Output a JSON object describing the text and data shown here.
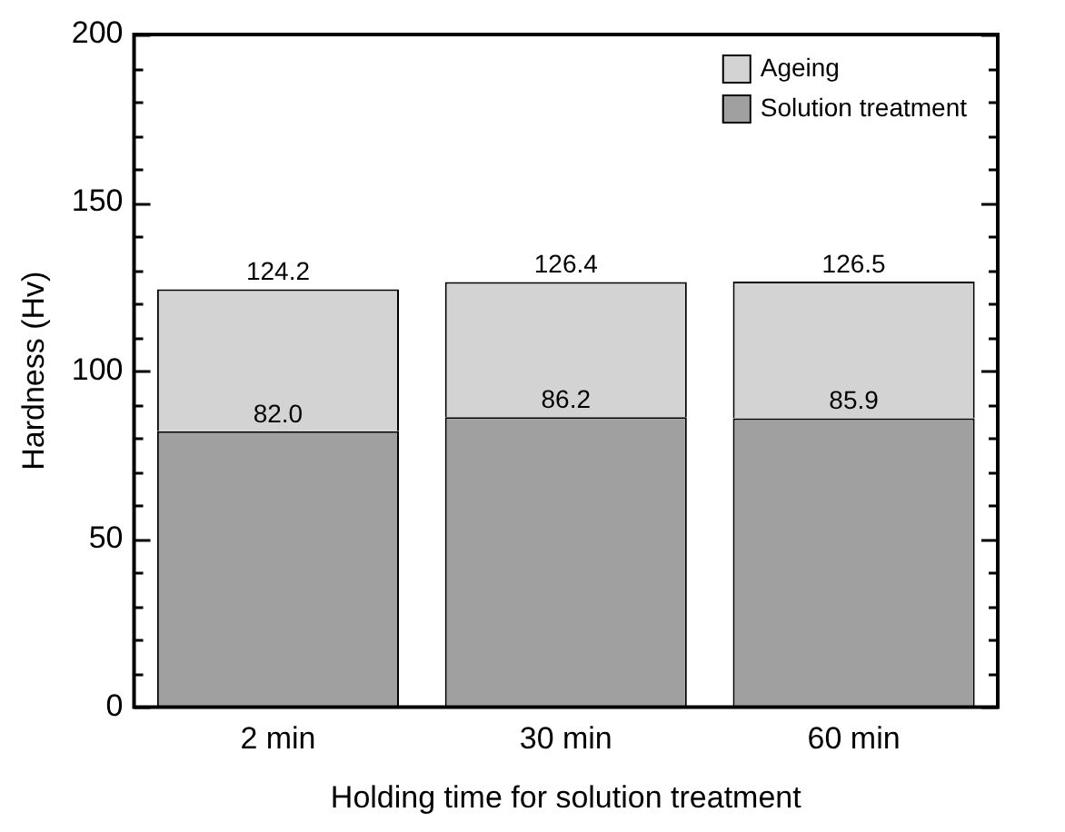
{
  "chart_data": {
    "type": "bar",
    "stacked": true,
    "xlabel": "Holding time for solution treatment",
    "ylabel": "Hardness (Hv)",
    "categories": [
      "2 min",
      "30 min",
      "60 min"
    ],
    "series": [
      {
        "name": "Solution treatment",
        "color": "#a0a0a0",
        "values": [
          82.0,
          86.2,
          85.9
        ],
        "value_labels": [
          "82.0",
          "86.2",
          "85.9"
        ]
      },
      {
        "name": "Ageing",
        "color": "#d3d3d3",
        "values": [
          42.2,
          40.2,
          40.6
        ]
      }
    ],
    "totals": [
      "124.2",
      "126.4",
      "126.5"
    ],
    "ylim": [
      0,
      200
    ],
    "yticks": [
      0,
      {
        "value": 10,
        "label": null
      },
      {
        "value": 20,
        "label": null
      },
      {
        "value": 30,
        "label": null
      },
      {
        "value": 40,
        "label": null
      },
      50,
      {
        "value": 60,
        "label": null
      },
      {
        "value": 70,
        "label": null
      },
      {
        "value": 80,
        "label": null
      },
      {
        "value": 90,
        "label": null
      },
      100,
      {
        "value": 110,
        "label": null
      },
      {
        "value": 120,
        "label": null
      },
      {
        "value": 130,
        "label": null
      },
      {
        "value": 140,
        "label": null
      },
      150,
      {
        "value": 160,
        "label": null
      },
      {
        "value": 170,
        "label": null
      },
      {
        "value": 180,
        "label": null
      },
      {
        "value": 190,
        "label": null
      },
      200
    ],
    "grid": false,
    "legend": "top right"
  }
}
